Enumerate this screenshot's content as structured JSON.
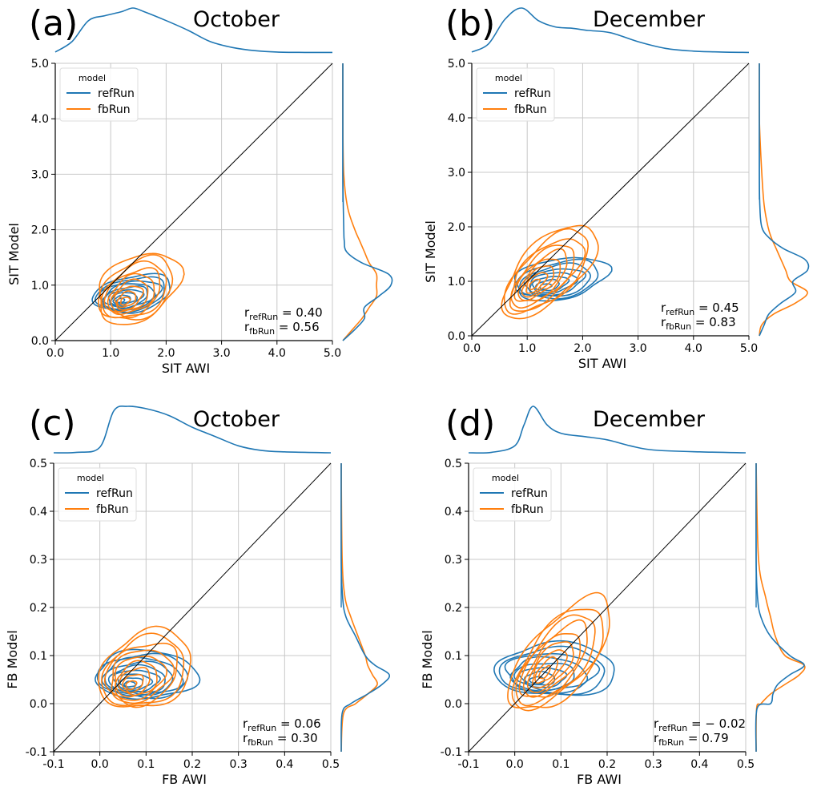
{
  "figure": {
    "colors": {
      "refRun": "#1f77b4",
      "fbRun": "#ff7f0e",
      "grid": "#c8c8c8",
      "diag": "#000000"
    },
    "legend": {
      "title": "model",
      "entries": [
        "refRun",
        "fbRun"
      ],
      "placement": "top-left"
    }
  },
  "chart_data": [
    {
      "panel_label": "(a)",
      "title": "October",
      "type": "scatter-kde-contour",
      "xlabel": "SIT AWI",
      "ylabel": "SIT Model",
      "xlim": [
        0,
        5
      ],
      "ylim": [
        0,
        5
      ],
      "xticks": [
        "0.0",
        "1.0",
        "2.0",
        "3.0",
        "4.0",
        "5.0"
      ],
      "yticks": [
        "0.0",
        "1.0",
        "2.0",
        "3.0",
        "4.0",
        "5.0"
      ],
      "tick_values": [
        0,
        1,
        2,
        3,
        4,
        5
      ],
      "grid": true,
      "annotation": {
        "r_refRun": "0.40",
        "r_fbRun": "0.56",
        "placement": "bottom-right"
      },
      "marginal_x": {
        "series": "refRun",
        "x": [
          0.0,
          0.3,
          0.6,
          0.9,
          1.2,
          1.4,
          1.6,
          2.0,
          2.4,
          2.8,
          3.2,
          3.6,
          4.0,
          4.5,
          5.0
        ],
        "density": [
          0.02,
          0.25,
          0.72,
          0.83,
          0.92,
          1.0,
          0.92,
          0.72,
          0.5,
          0.25,
          0.12,
          0.05,
          0.02,
          0.01,
          0.01
        ]
      },
      "marginal_y": {
        "y": [
          0.0,
          0.2,
          0.4,
          0.6,
          0.8,
          1.0,
          1.2,
          1.4,
          1.6,
          1.8,
          2.0,
          2.4,
          3.0,
          4.0,
          5.0
        ],
        "refRun": [
          0.0,
          0.25,
          0.45,
          0.45,
          0.75,
          1.0,
          0.95,
          0.4,
          0.08,
          0.03,
          0.02,
          0.01,
          0.0,
          0.0,
          0.0
        ],
        "fbRun": [
          0.0,
          0.2,
          0.4,
          0.55,
          0.7,
          0.7,
          0.7,
          0.55,
          0.45,
          0.35,
          0.25,
          0.1,
          0.02,
          0.0,
          0.0
        ]
      },
      "contours": {
        "refRun": {
          "center": [
            1.4,
            0.85
          ],
          "spread": [
            1.4,
            0.65
          ],
          "tilt": 0.15,
          "levels": 9
        },
        "fbRun": {
          "center": [
            1.5,
            0.95
          ],
          "spread": [
            1.5,
            1.2
          ],
          "tilt": 0.3,
          "levels": 9
        }
      }
    },
    {
      "panel_label": "(b)",
      "title": "December",
      "type": "scatter-kde-contour",
      "xlabel": "SIT AWI",
      "ylabel": "SIT Model",
      "xlim": [
        0,
        5
      ],
      "ylim": [
        0,
        5
      ],
      "xticks": [
        "0.0",
        "1.0",
        "2.0",
        "3.0",
        "4.0",
        "5.0"
      ],
      "yticks": [
        "0.0",
        "1.0",
        "2.0",
        "3.0",
        "4.0",
        "5.0"
      ],
      "tick_values": [
        0,
        1,
        2,
        3,
        4,
        5
      ],
      "grid": true,
      "annotation": {
        "r_refRun": "0.45",
        "r_fbRun": "0.83",
        "placement": "bottom-right"
      },
      "marginal_x": {
        "series": "refRun",
        "x": [
          0.0,
          0.3,
          0.6,
          0.9,
          1.2,
          1.5,
          1.8,
          2.1,
          2.5,
          3.0,
          3.5,
          4.0,
          4.5,
          5.0
        ],
        "density": [
          0.02,
          0.2,
          0.75,
          1.0,
          0.72,
          0.58,
          0.55,
          0.5,
          0.45,
          0.25,
          0.1,
          0.04,
          0.02,
          0.01
        ]
      },
      "marginal_y": {
        "y": [
          0.0,
          0.2,
          0.4,
          0.6,
          0.8,
          1.0,
          1.2,
          1.4,
          1.6,
          1.8,
          2.0,
          2.4,
          3.0,
          4.0,
          5.0
        ],
        "refRun": [
          0.0,
          0.1,
          0.2,
          0.45,
          0.75,
          0.7,
          1.0,
          0.95,
          0.5,
          0.2,
          0.05,
          0.01,
          0.0,
          0.0,
          0.0
        ],
        "fbRun": [
          0.0,
          0.05,
          0.3,
          0.75,
          1.0,
          0.65,
          0.55,
          0.45,
          0.35,
          0.25,
          0.18,
          0.1,
          0.05,
          0.0,
          0.0
        ]
      },
      "contours": {
        "refRun": {
          "center": [
            1.6,
            1.05
          ],
          "spread": [
            1.7,
            0.75
          ],
          "tilt": 0.15,
          "levels": 8
        },
        "fbRun": {
          "center": [
            1.4,
            1.2
          ],
          "spread": [
            1.7,
            1.3
          ],
          "tilt": 0.65,
          "levels": 9
        }
      }
    },
    {
      "panel_label": "(c)",
      "title": "October",
      "type": "scatter-kde-contour",
      "xlabel": "FB AWI",
      "ylabel": "FB Model",
      "xlim": [
        -0.1,
        0.5
      ],
      "ylim": [
        -0.1,
        0.5
      ],
      "xticks": [
        "-0.1",
        "0.0",
        "0.1",
        "0.2",
        "0.3",
        "0.4",
        "0.5"
      ],
      "yticks": [
        "-0.1",
        "0.0",
        "0.1",
        "0.2",
        "0.3",
        "0.4",
        "0.5"
      ],
      "tick_values": [
        -0.1,
        0.0,
        0.1,
        0.2,
        0.3,
        0.4,
        0.5
      ],
      "grid": true,
      "annotation": {
        "r_refRun": "0.06",
        "r_fbRun": "0.30",
        "placement": "bottom-right"
      },
      "marginal_x": {
        "series": "refRun",
        "x": [
          -0.1,
          -0.05,
          0.0,
          0.03,
          0.06,
          0.1,
          0.15,
          0.2,
          0.25,
          0.3,
          0.35,
          0.4,
          0.5
        ],
        "density": [
          0.0,
          0.01,
          0.12,
          0.9,
          1.0,
          0.95,
          0.8,
          0.55,
          0.35,
          0.15,
          0.05,
          0.02,
          0.0
        ]
      },
      "marginal_y": {
        "y": [
          -0.1,
          -0.02,
          0.0,
          0.02,
          0.04,
          0.06,
          0.08,
          0.1,
          0.14,
          0.18,
          0.22,
          0.3,
          0.5
        ],
        "refRun": [
          0.0,
          0.02,
          0.2,
          0.55,
          0.85,
          1.0,
          0.7,
          0.5,
          0.3,
          0.1,
          0.03,
          0.0,
          0.0
        ],
        "fbRun": [
          0.0,
          0.05,
          0.3,
          0.55,
          0.75,
          0.65,
          0.55,
          0.5,
          0.35,
          0.2,
          0.08,
          0.02,
          0.0
        ]
      },
      "contours": {
        "refRun": {
          "center": [
            0.1,
            0.06
          ],
          "spread": [
            0.22,
            0.1
          ],
          "tilt": 0.0,
          "levels": 9
        },
        "fbRun": {
          "center": [
            0.1,
            0.07
          ],
          "spread": [
            0.2,
            0.16
          ],
          "tilt": 0.2,
          "levels": 9
        }
      }
    },
    {
      "panel_label": "(d)",
      "title": "December",
      "type": "scatter-kde-contour",
      "xlabel": "FB AWI",
      "ylabel": "FB Model",
      "xlim": [
        -0.1,
        0.5
      ],
      "ylim": [
        -0.1,
        0.5
      ],
      "xticks": [
        "-0.1",
        "0.0",
        "0.1",
        "0.2",
        "0.3",
        "0.4",
        "0.5"
      ],
      "yticks": [
        "-0.1",
        "0.0",
        "0.1",
        "0.2",
        "0.3",
        "0.4",
        "0.5"
      ],
      "tick_values": [
        -0.1,
        0.0,
        0.1,
        0.2,
        0.3,
        0.4,
        0.5
      ],
      "grid": true,
      "annotation": {
        "r_refRun": "− 0.02",
        "r_fbRun": "0.79",
        "placement": "bottom-right"
      },
      "marginal_x": {
        "series": "refRun",
        "x": [
          -0.1,
          -0.05,
          0.0,
          0.02,
          0.04,
          0.07,
          0.1,
          0.15,
          0.2,
          0.25,
          0.3,
          0.4,
          0.5
        ],
        "density": [
          0.0,
          0.01,
          0.15,
          0.6,
          1.0,
          0.6,
          0.42,
          0.35,
          0.28,
          0.15,
          0.06,
          0.02,
          0.0
        ]
      },
      "marginal_y": {
        "y": [
          -0.1,
          -0.01,
          0.0,
          0.02,
          0.04,
          0.06,
          0.08,
          0.1,
          0.14,
          0.18,
          0.22,
          0.3,
          0.5
        ],
        "refRun": [
          0.0,
          0.02,
          0.3,
          0.35,
          0.45,
          0.7,
          1.0,
          0.7,
          0.3,
          0.1,
          0.03,
          0.0,
          0.0
        ],
        "fbRun": [
          0.0,
          0.01,
          0.1,
          0.3,
          0.6,
          0.9,
          1.0,
          0.6,
          0.4,
          0.3,
          0.2,
          0.05,
          0.0
        ]
      },
      "contours": {
        "refRun": {
          "center": [
            0.09,
            0.07
          ],
          "spread": [
            0.26,
            0.11
          ],
          "tilt": 0.0,
          "levels": 8
        },
        "fbRun": {
          "center": [
            0.1,
            0.1
          ],
          "spread": [
            0.22,
            0.18
          ],
          "tilt": 0.7,
          "levels": 9
        }
      }
    }
  ]
}
